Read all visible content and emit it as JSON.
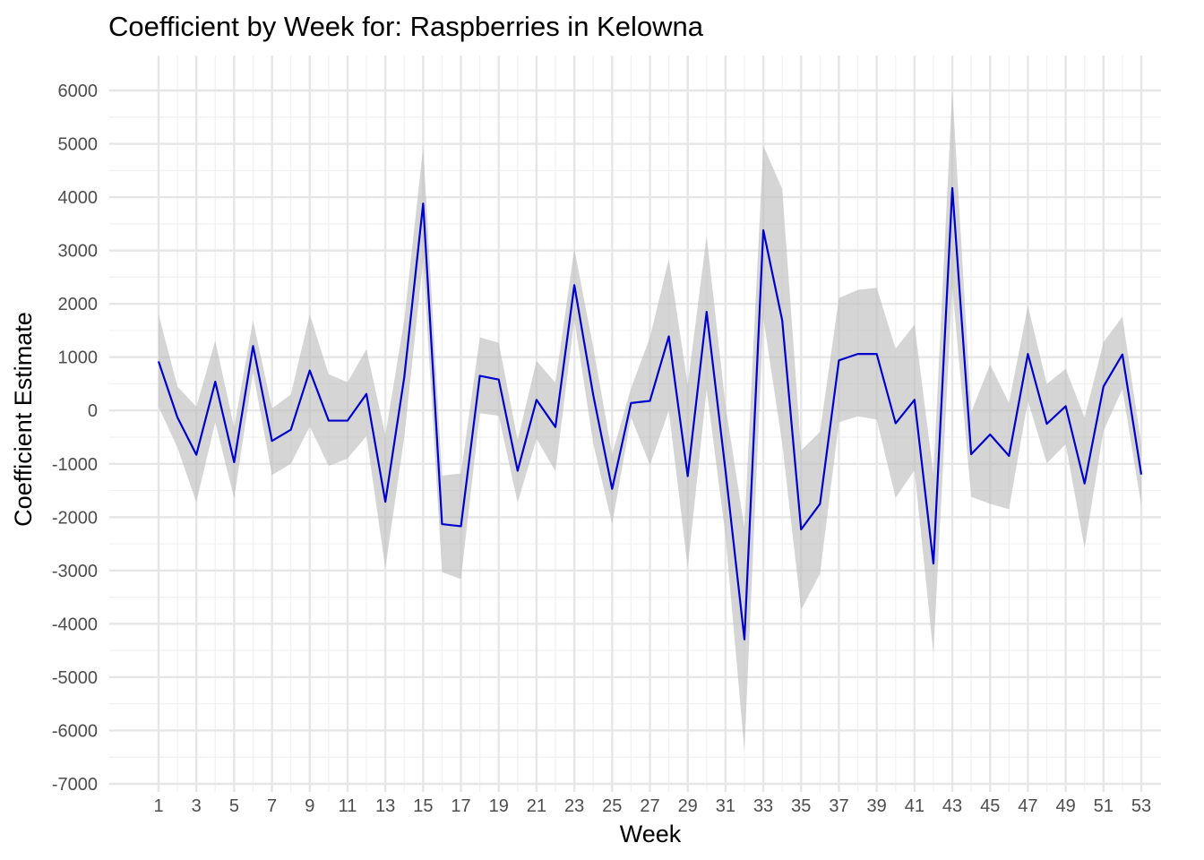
{
  "chart_data": {
    "type": "line",
    "title": "Coefficient by Week for: Raspberries in Kelowna",
    "xlabel": "Week",
    "ylabel": "Coefficient Estimate",
    "xlim": [
      1,
      53
    ],
    "ylim": [
      -7000,
      6000
    ],
    "x_ticks": [
      1,
      3,
      5,
      7,
      9,
      11,
      13,
      15,
      17,
      19,
      21,
      23,
      25,
      27,
      29,
      31,
      33,
      35,
      37,
      39,
      41,
      43,
      45,
      47,
      49,
      51,
      53
    ],
    "y_ticks": [
      6000,
      5000,
      4000,
      3000,
      2000,
      1000,
      0,
      -1000,
      -2000,
      -3000,
      -4000,
      -5000,
      -6000,
      -7000
    ],
    "grid": true,
    "legend": "none",
    "line_color": "#0000cc",
    "band_color": "#bebebe",
    "series": [
      {
        "x": [
          1,
          2,
          3,
          4,
          5,
          6,
          7,
          8,
          9,
          10,
          11,
          12,
          13,
          14,
          15,
          16,
          17,
          18,
          19,
          20,
          21,
          22,
          23,
          24,
          25,
          26,
          27,
          28,
          29,
          30,
          31,
          32,
          33,
          34,
          35,
          36,
          37,
          38,
          39,
          40,
          41,
          42,
          43,
          44,
          45,
          46,
          47,
          48,
          49,
          50,
          51,
          52,
          53
        ],
        "values": [
          920,
          -130,
          -830,
          540,
          -970,
          1210,
          -570,
          -360,
          750,
          -190,
          -190,
          310,
          -1710,
          620,
          3880,
          -2130,
          -2170,
          650,
          580,
          -1130,
          200,
          -310,
          2350,
          290,
          -1470,
          140,
          180,
          1390,
          -1230,
          1850,
          -1130,
          -4290,
          3380,
          1690,
          -2230,
          -1750,
          940,
          1060,
          1060,
          -240,
          200,
          -2870,
          4170,
          -820,
          -450,
          -850,
          1060,
          -250,
          80,
          -1370,
          450,
          1050,
          -1200
        ],
        "lower": [
          70,
          -700,
          -1720,
          -220,
          -1650,
          720,
          -1210,
          -1000,
          -300,
          -1040,
          -900,
          -480,
          -2960,
          -500,
          2820,
          -3030,
          -3160,
          -50,
          -100,
          -1730,
          -530,
          -1140,
          1710,
          -620,
          -2130,
          -130,
          -1020,
          0,
          -2950,
          400,
          -2350,
          -6380,
          1740,
          -620,
          -3740,
          -3060,
          -220,
          -110,
          -170,
          -1640,
          -1120,
          -4560,
          2330,
          -1620,
          -1750,
          -1850,
          180,
          -990,
          -630,
          -2580,
          -380,
          400,
          -1780
        ],
        "upper": [
          1800,
          450,
          70,
          1310,
          -320,
          1690,
          40,
          300,
          1800,
          680,
          530,
          1150,
          -460,
          1700,
          4940,
          -1220,
          -1180,
          1370,
          1270,
          -550,
          930,
          520,
          3030,
          1190,
          -820,
          420,
          1370,
          2840,
          480,
          3270,
          90,
          -2200,
          4970,
          4150,
          -750,
          -400,
          2110,
          2260,
          2300,
          1160,
          1610,
          -1190,
          6010,
          -30,
          860,
          140,
          1960,
          500,
          780,
          -130,
          1280,
          1760,
          -640
        ]
      }
    ]
  }
}
